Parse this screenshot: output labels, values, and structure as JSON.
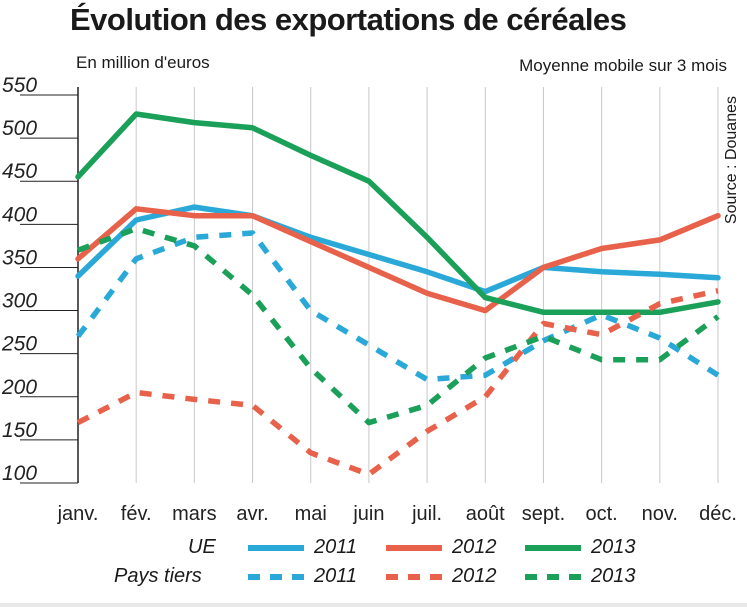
{
  "title": "Évolution des exportations de céréales",
  "unit_label": "En million d'euros",
  "note": "Moyenne mobile sur 3 mois",
  "source": "Source : Douanes",
  "legend": {
    "row1_label": "UE",
    "row2_label": "Pays tiers",
    "years": [
      "2011",
      "2012",
      "2013"
    ]
  },
  "colors": {
    "2011": "#2aa9d9",
    "2012": "#e8614a",
    "2013": "#1aa058"
  },
  "chart_data": {
    "type": "line",
    "title": "Évolution des exportations de céréales",
    "ylabel": "En million d'euros",
    "ylim": [
      100,
      550
    ],
    "yticks": [
      100,
      150,
      200,
      250,
      300,
      350,
      400,
      450,
      500,
      550
    ],
    "categories": [
      "janv.",
      "fév.",
      "mars",
      "avr.",
      "mai",
      "juin",
      "juil.",
      "août",
      "sept.",
      "oct.",
      "nov.",
      "déc."
    ],
    "grid": "vertical",
    "series": [
      {
        "name": "UE 2011",
        "group": "UE",
        "year": "2011",
        "style": "solid",
        "values": [
          340,
          405,
          420,
          410,
          385,
          365,
          345,
          322,
          350,
          345,
          342,
          338
        ]
      },
      {
        "name": "UE 2012",
        "group": "UE",
        "year": "2012",
        "style": "solid",
        "values": [
          360,
          418,
          410,
          410,
          380,
          350,
          320,
          300,
          350,
          372,
          382,
          410
        ]
      },
      {
        "name": "UE 2013",
        "group": "UE",
        "year": "2013",
        "style": "solid",
        "values": [
          455,
          528,
          518,
          512,
          480,
          450,
          385,
          315,
          298,
          298,
          298,
          310
        ]
      },
      {
        "name": "Pays tiers 2011",
        "group": "Pays tiers",
        "year": "2011",
        "style": "dashed",
        "values": [
          270,
          360,
          385,
          390,
          300,
          260,
          220,
          225,
          265,
          295,
          268,
          225
        ]
      },
      {
        "name": "Pays tiers 2012",
        "group": "Pays tiers",
        "year": "2012",
        "style": "dashed",
        "values": [
          170,
          205,
          197,
          190,
          135,
          110,
          160,
          200,
          285,
          272,
          308,
          323
        ]
      },
      {
        "name": "Pays tiers 2013",
        "group": "Pays tiers",
        "year": "2013",
        "style": "dashed",
        "values": [
          370,
          395,
          375,
          318,
          233,
          170,
          190,
          245,
          270,
          243,
          243,
          293
        ]
      }
    ]
  }
}
